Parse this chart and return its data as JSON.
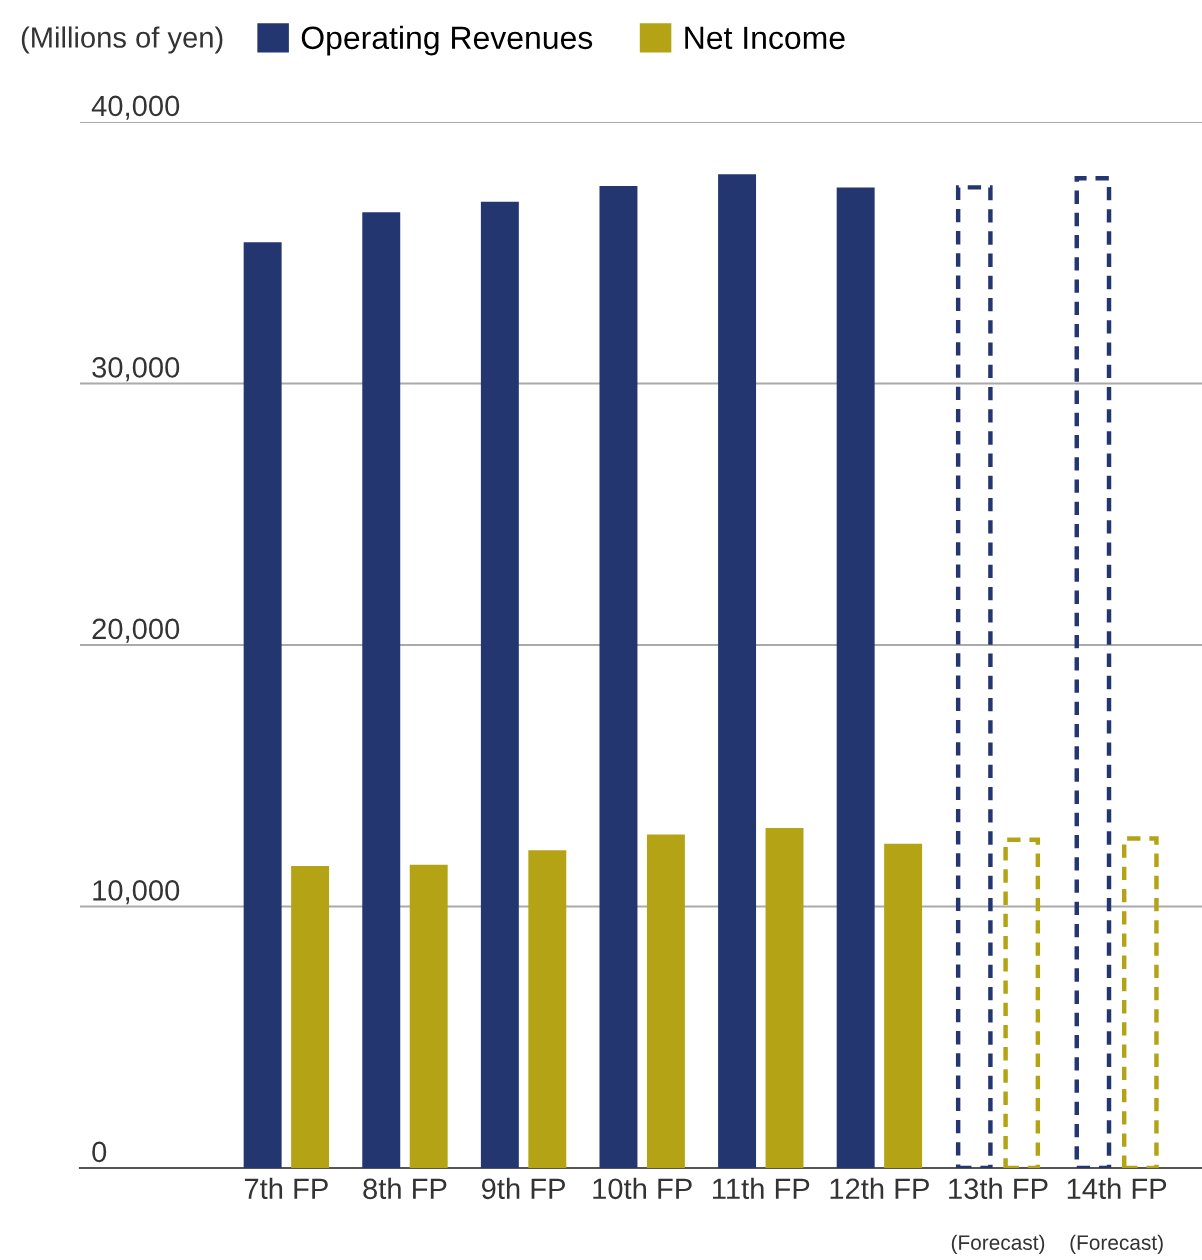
{
  "chart_data": {
    "type": "bar",
    "ylabel": "(Millions of yen)",
    "categories": [
      "7th FP",
      "8th FP",
      "9th FP",
      "10th FP",
      "11th FP",
      "12th FP",
      "13th FP\n(Forecast)",
      "14th FP\n(Forecast)"
    ],
    "series": [
      {
        "name": "Operating Revenues",
        "color": "#233670",
        "values": [
          35400,
          36550,
          36950,
          37550,
          38000,
          37500,
          null,
          null
        ]
      },
      {
        "name": "Net Income",
        "color": "#b5a316",
        "values": [
          11550,
          11600,
          12150,
          12750,
          13000,
          12400,
          null,
          null
        ]
      },
      {
        "color": "#233670",
        "line_style": "dashed",
        "values": [
          null,
          null,
          null,
          null,
          null,
          null,
          37500,
          37850
        ]
      },
      {
        "color": "#b5a316",
        "line_style": "dashed",
        "values": [
          null,
          null,
          null,
          null,
          null,
          null,
          12550,
          12600
        ]
      }
    ],
    "ylim": [
      0,
      40000
    ],
    "yticks": [
      {
        "value": 0,
        "label": "0"
      },
      {
        "value": 10000,
        "label": "10,000"
      },
      {
        "value": 20000,
        "label": "20,000"
      },
      {
        "value": 30000,
        "label": "30,000"
      },
      {
        "value": 40000,
        "label": "40,000"
      }
    ],
    "grid": "y",
    "legend": "top left"
  }
}
